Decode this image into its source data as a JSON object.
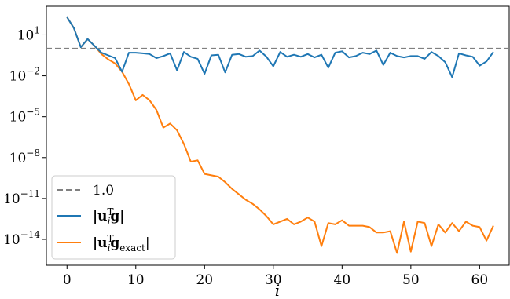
{
  "chart_data": {
    "type": "line",
    "xlabel": "i",
    "ylabel": "",
    "title": "",
    "xlim": [
      -3,
      64.3
    ],
    "ylim_log10": [
      -15.9,
      3.1
    ],
    "y_scale": "log",
    "x_ticks": [
      0,
      10,
      20,
      30,
      40,
      50,
      60
    ],
    "y_ticks_log10": [
      1,
      -2,
      -5,
      -8,
      -11,
      -14
    ],
    "grid": false,
    "legend_placement": "lower-left",
    "reference_line": {
      "name": "1.0",
      "value": 1.0,
      "color": "#808080",
      "style": "dashed"
    },
    "series": [
      {
        "name": "|u_i^T g|",
        "legend_base": "|u",
        "legend_sub": "i",
        "legend_sup": "T",
        "legend_rest": "g|",
        "color": "#1f77b4",
        "log10_values": [
          2.3,
          1.5,
          0.1,
          0.7,
          0.2,
          -0.3,
          -0.5,
          -0.7,
          -1.7,
          -0.3,
          -0.3,
          -0.35,
          -0.4,
          -0.7,
          -0.55,
          -0.35,
          -1.6,
          -0.25,
          -0.6,
          -0.75,
          -1.85,
          -0.5,
          -0.45,
          -1.75,
          -0.45,
          -0.4,
          -0.6,
          -0.55,
          -0.15,
          -0.6,
          -1.3,
          -0.25,
          -0.6,
          -0.45,
          -0.6,
          -0.4,
          -0.65,
          -0.45,
          -1.4,
          -0.3,
          -0.2,
          -0.65,
          -0.55,
          -0.3,
          -0.4,
          -0.15,
          -1.2,
          -0.3,
          -0.55,
          -0.65,
          -0.55,
          -0.55,
          -0.75,
          -0.25,
          -0.55,
          -1.0,
          -2.1,
          -0.35,
          -0.5,
          -0.6,
          -1.25,
          -0.95,
          -0.25
        ]
      },
      {
        "name": "|u_i^T g_exact|",
        "legend_base": "|u",
        "legend_sub": "i",
        "legend_sup": "T",
        "legend_rest": "g",
        "legend_rest_sub": "exact",
        "legend_tail": "|",
        "color": "#ff7f0e",
        "log10_values": [
          2.3,
          1.5,
          0.1,
          0.7,
          0.2,
          -0.4,
          -0.8,
          -1.1,
          -1.7,
          -2.6,
          -3.8,
          -3.4,
          -3.8,
          -4.5,
          -5.8,
          -5.5,
          -6.0,
          -7.0,
          -8.3,
          -8.2,
          -9.2,
          -9.3,
          -9.4,
          -9.8,
          -10.3,
          -10.7,
          -11.1,
          -11.4,
          -11.8,
          -12.3,
          -12.9,
          -12.7,
          -12.5,
          -12.9,
          -12.7,
          -12.4,
          -12.7,
          -14.5,
          -12.8,
          -12.9,
          -12.6,
          -13.0,
          -13.0,
          -13.0,
          -13.1,
          -13.5,
          -13.5,
          -13.4,
          -15.0,
          -12.7,
          -14.9,
          -12.7,
          -12.8,
          -14.5,
          -12.9,
          -13.5,
          -12.8,
          -13.4,
          -12.7,
          -13.0,
          -13.1,
          -14.1,
          -13.0
        ]
      }
    ]
  }
}
